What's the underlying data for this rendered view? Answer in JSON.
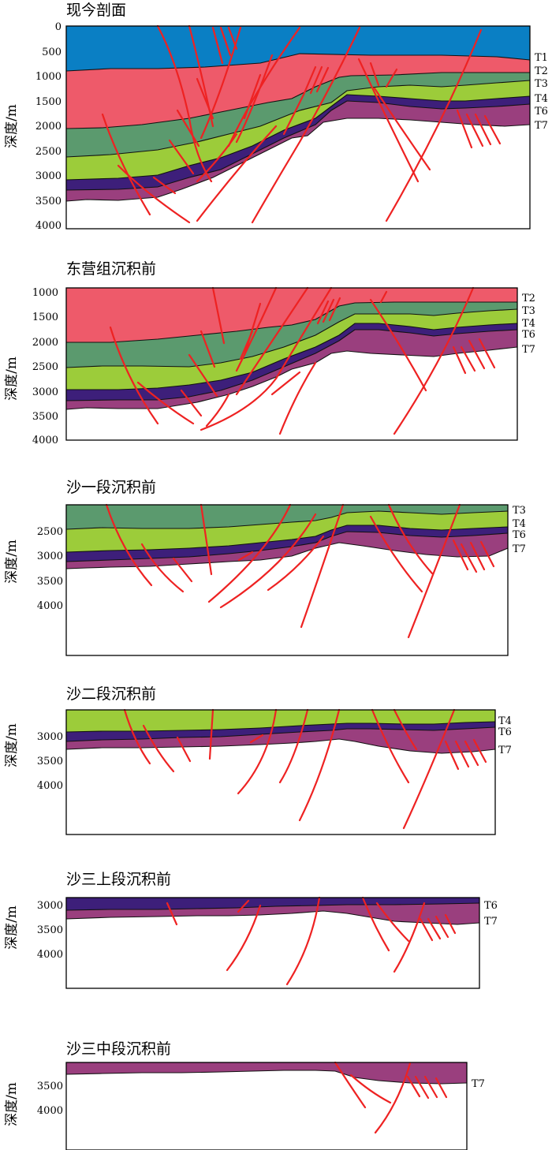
{
  "colors": {
    "water": "#0a7fc4",
    "T1T2": "#ee5a6a",
    "T2T3": "#5b9a6e",
    "T3T4": "#9ccc3a",
    "T4T6": "#3d1f7a",
    "T6T7": "#9a3f7e",
    "fault": "#ee2222"
  },
  "ylabel": "深度/m",
  "panels": [
    {
      "title": "现今剖面",
      "ticks": [
        "0",
        "500",
        "1000",
        "1500",
        "2000",
        "2500",
        "3000",
        "3500",
        "4000"
      ],
      "horizons": [
        "T1",
        "T2",
        "T3",
        "T4",
        "T6",
        "T7"
      ]
    },
    {
      "title": "东营组沉积前",
      "ticks": [
        "1000",
        "1500",
        "2000",
        "2500",
        "3000",
        "3500",
        "4000"
      ],
      "horizons": [
        "T2",
        "T3",
        "T4",
        "T6",
        "T7"
      ]
    },
    {
      "title": "沙一段沉积前",
      "ticks": [
        "2500",
        "3000",
        "3500",
        "4000"
      ],
      "horizons": [
        "T3",
        "T4",
        "T6",
        "T7"
      ]
    },
    {
      "title": "沙二段沉积前",
      "ticks": [
        "3000",
        "3500",
        "4000"
      ],
      "horizons": [
        "T4",
        "T6",
        "T7"
      ]
    },
    {
      "title": "沙三上段沉积前",
      "ticks": [
        "3000",
        "3500",
        "4000"
      ],
      "horizons": [
        "T6",
        "T7"
      ]
    },
    {
      "title": "沙三中段沉积前",
      "ticks": [
        "3500",
        "4000"
      ],
      "horizons": [
        "T7"
      ]
    }
  ]
}
